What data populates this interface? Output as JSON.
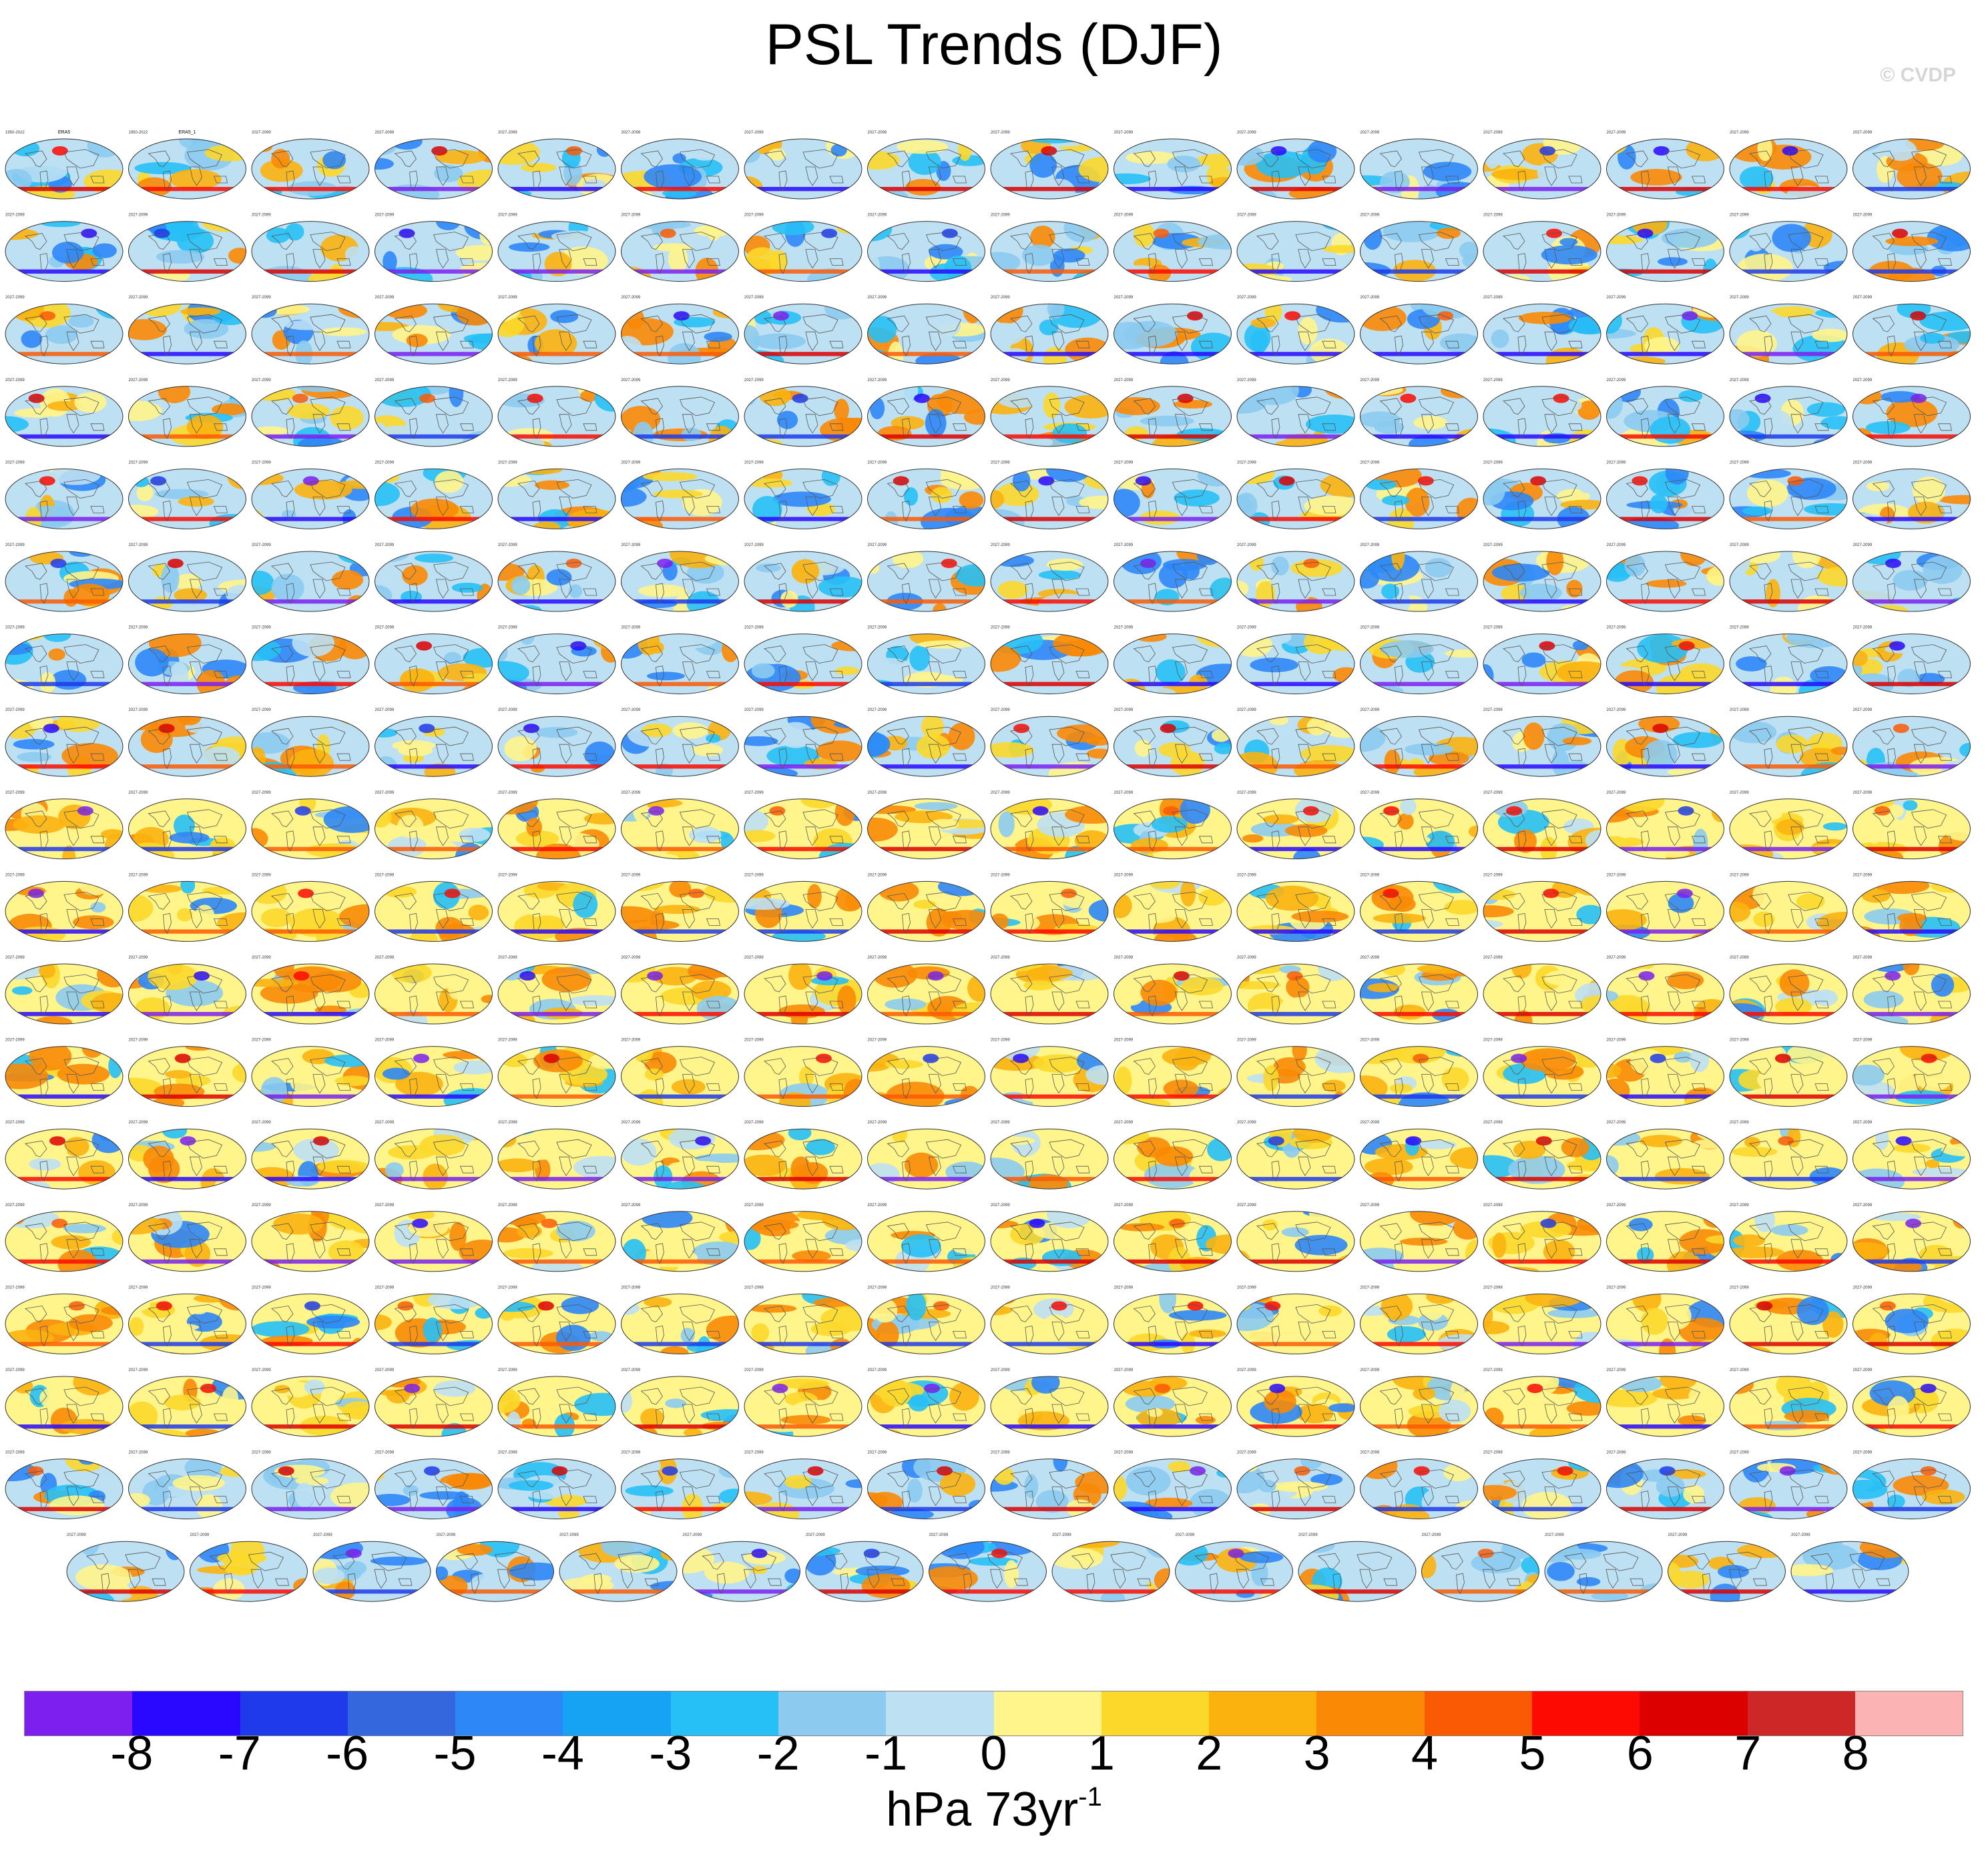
{
  "title": "PSL Trends (DJF)",
  "watermark": "© CVDP",
  "colorbar": {
    "colors": [
      "#7d1fef",
      "#2a08ff",
      "#1e3aea",
      "#3467dd",
      "#2d87f7",
      "#17a3f3",
      "#27c0f6",
      "#8ccbef",
      "#bde0f3",
      "#fff58b",
      "#fcd82b",
      "#fbb20f",
      "#fa8a06",
      "#fb5a05",
      "#fd0a02",
      "#dd0000",
      "#cd2727",
      "#fbb3b3"
    ],
    "tick_labels": [
      "-8",
      "-7",
      "-6",
      "-5",
      "-4",
      "-3",
      "-2",
      "-1",
      "0",
      "1",
      "2",
      "3",
      "4",
      "5",
      "6",
      "7",
      "8"
    ],
    "units": "hPa 73yr",
    "units_exponent": "-1"
  },
  "panel_grid": {
    "rows": 18,
    "columns": 16,
    "last_row_columns": 15,
    "first_panel_label": "ERA5",
    "second_panel_label": "ERA5_1",
    "first_panel_years": "1950-2022",
    "model_years": "2027-2099"
  }
}
